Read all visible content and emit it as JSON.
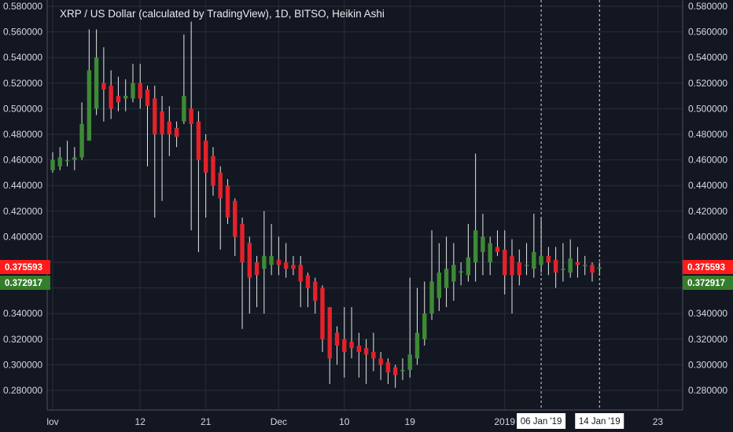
{
  "title": "XRP / US Dollar (calculated by TradingView), 1D, BITSO, Heikin Ashi",
  "colors": {
    "background": "#131722",
    "grid": "#2a2e39",
    "axis_text": "#d6d8de",
    "up": "#3e8a35",
    "down": "#e3222b",
    "wick": "#e6e6e6",
    "price_tag_red": "#ff1b1b",
    "price_tag_green": "#347d2b"
  },
  "chart_data": {
    "type": "candlestick",
    "style": "Heikin Ashi",
    "symbol": "XRP / US Dollar",
    "interval": "1D",
    "exchange": "BITSO",
    "ylim": [
      0.272,
      0.582
    ],
    "y_ticks": [
      0.28,
      0.3,
      0.32,
      0.34,
      0.4,
      0.42,
      0.44,
      0.46,
      0.48,
      0.5,
      0.52,
      0.54,
      0.56,
      0.58
    ],
    "y_tick_labels": [
      "0.280000",
      "0.300000",
      "0.320000",
      "0.340000",
      "0.400000",
      "0.420000",
      "0.440000",
      "0.460000",
      "0.480000",
      "0.500000",
      "0.520000",
      "0.540000",
      "0.560000",
      "0.580000"
    ],
    "x_ticks": [
      {
        "day": 0,
        "label": "lov"
      },
      {
        "day": 12,
        "label": "12"
      },
      {
        "day": 21,
        "label": "21"
      },
      {
        "day": 31,
        "label": "Dec"
      },
      {
        "day": 40,
        "label": "10"
      },
      {
        "day": 49,
        "label": "19"
      },
      {
        "day": 62,
        "label": "2019"
      },
      {
        "day": 83,
        "label": "23"
      }
    ],
    "date_markers": [
      {
        "day": 67,
        "label": "06 Jan '19"
      },
      {
        "day": 75,
        "label": "14 Jan '19"
      }
    ],
    "price_labels": [
      {
        "value": 0.375593,
        "label": "0.375593",
        "color": "red"
      },
      {
        "value": 0.372917,
        "label": "0.372917",
        "color": "green"
      }
    ],
    "candles": [
      {
        "day": 0,
        "open": 0.452,
        "close": 0.46,
        "high": 0.466,
        "low": 0.45
      },
      {
        "day": 1,
        "open": 0.455,
        "close": 0.462,
        "high": 0.47,
        "low": 0.452
      },
      {
        "day": 2,
        "open": 0.459,
        "close": 0.46,
        "high": 0.475,
        "low": 0.455
      },
      {
        "day": 3,
        "open": 0.46,
        "close": 0.462,
        "high": 0.47,
        "low": 0.452
      },
      {
        "day": 4,
        "open": 0.462,
        "close": 0.488,
        "high": 0.505,
        "low": 0.46
      },
      {
        "day": 5,
        "open": 0.475,
        "close": 0.53,
        "high": 0.562,
        "low": 0.475
      },
      {
        "day": 6,
        "open": 0.5,
        "close": 0.54,
        "high": 0.562,
        "low": 0.495
      },
      {
        "day": 7,
        "open": 0.52,
        "close": 0.515,
        "high": 0.548,
        "low": 0.49
      },
      {
        "day": 8,
        "open": 0.518,
        "close": 0.5,
        "high": 0.53,
        "low": 0.492
      },
      {
        "day": 9,
        "open": 0.51,
        "close": 0.505,
        "high": 0.525,
        "low": 0.498
      },
      {
        "day": 10,
        "open": 0.508,
        "close": 0.51,
        "high": 0.523,
        "low": 0.498
      },
      {
        "day": 11,
        "open": 0.508,
        "close": 0.52,
        "high": 0.535,
        "low": 0.505
      },
      {
        "day": 12,
        "open": 0.52,
        "close": 0.508,
        "high": 0.535,
        "low": 0.5
      },
      {
        "day": 13,
        "open": 0.515,
        "close": 0.502,
        "high": 0.518,
        "low": 0.455
      },
      {
        "day": 14,
        "open": 0.508,
        "close": 0.48,
        "high": 0.518,
        "low": 0.415
      },
      {
        "day": 15,
        "open": 0.498,
        "close": 0.48,
        "high": 0.51,
        "low": 0.428
      },
      {
        "day": 16,
        "open": 0.49,
        "close": 0.48,
        "high": 0.502,
        "low": 0.463
      },
      {
        "day": 17,
        "open": 0.485,
        "close": 0.478,
        "high": 0.49,
        "low": 0.47
      },
      {
        "day": 18,
        "open": 0.49,
        "close": 0.51,
        "high": 0.558,
        "low": 0.488
      },
      {
        "day": 19,
        "open": 0.5,
        "close": 0.488,
        "high": 0.568,
        "low": 0.405
      },
      {
        "day": 20,
        "open": 0.49,
        "close": 0.46,
        "high": 0.498,
        "low": 0.388
      },
      {
        "day": 21,
        "open": 0.475,
        "close": 0.45,
        "high": 0.48,
        "low": 0.415
      },
      {
        "day": 22,
        "open": 0.463,
        "close": 0.44,
        "high": 0.47,
        "low": 0.432
      },
      {
        "day": 23,
        "open": 0.45,
        "close": 0.43,
        "high": 0.455,
        "low": 0.39
      },
      {
        "day": 24,
        "open": 0.44,
        "close": 0.415,
        "high": 0.445,
        "low": 0.41
      },
      {
        "day": 25,
        "open": 0.428,
        "close": 0.4,
        "high": 0.43,
        "low": 0.385
      },
      {
        "day": 26,
        "open": 0.41,
        "close": 0.38,
        "high": 0.415,
        "low": 0.328
      },
      {
        "day": 27,
        "open": 0.395,
        "close": 0.368,
        "high": 0.4,
        "low": 0.34
      },
      {
        "day": 28,
        "open": 0.38,
        "close": 0.37,
        "high": 0.385,
        "low": 0.345
      },
      {
        "day": 29,
        "open": 0.375,
        "close": 0.385,
        "high": 0.42,
        "low": 0.34
      },
      {
        "day": 30,
        "open": 0.378,
        "close": 0.385,
        "high": 0.41,
        "low": 0.37
      },
      {
        "day": 31,
        "open": 0.382,
        "close": 0.378,
        "high": 0.4,
        "low": 0.37
      },
      {
        "day": 32,
        "open": 0.38,
        "close": 0.375,
        "high": 0.395,
        "low": 0.368
      },
      {
        "day": 33,
        "open": 0.378,
        "close": 0.375,
        "high": 0.385,
        "low": 0.37
      },
      {
        "day": 34,
        "open": 0.378,
        "close": 0.365,
        "high": 0.385,
        "low": 0.345
      },
      {
        "day": 35,
        "open": 0.37,
        "close": 0.36,
        "high": 0.372,
        "low": 0.345
      },
      {
        "day": 36,
        "open": 0.365,
        "close": 0.35,
        "high": 0.368,
        "low": 0.34
      },
      {
        "day": 37,
        "open": 0.36,
        "close": 0.32,
        "high": 0.362,
        "low": 0.31
      },
      {
        "day": 38,
        "open": 0.345,
        "close": 0.305,
        "high": 0.345,
        "low": 0.285
      },
      {
        "day": 39,
        "open": 0.325,
        "close": 0.315,
        "high": 0.33,
        "low": 0.3
      },
      {
        "day": 40,
        "open": 0.32,
        "close": 0.31,
        "high": 0.345,
        "low": 0.29
      },
      {
        "day": 41,
        "open": 0.318,
        "close": 0.313,
        "high": 0.345,
        "low": 0.305
      },
      {
        "day": 42,
        "open": 0.315,
        "close": 0.31,
        "high": 0.325,
        "low": 0.29
      },
      {
        "day": 43,
        "open": 0.313,
        "close": 0.308,
        "high": 0.32,
        "low": 0.285
      },
      {
        "day": 44,
        "open": 0.31,
        "close": 0.305,
        "high": 0.325,
        "low": 0.295
      },
      {
        "day": 45,
        "open": 0.305,
        "close": 0.3,
        "high": 0.31,
        "low": 0.288
      },
      {
        "day": 46,
        "open": 0.302,
        "close": 0.294,
        "high": 0.305,
        "low": 0.285
      },
      {
        "day": 47,
        "open": 0.298,
        "close": 0.292,
        "high": 0.3,
        "low": 0.282
      },
      {
        "day": 48,
        "open": 0.295,
        "close": 0.296,
        "high": 0.305,
        "low": 0.288
      },
      {
        "day": 49,
        "open": 0.296,
        "close": 0.308,
        "high": 0.368,
        "low": 0.29
      },
      {
        "day": 50,
        "open": 0.305,
        "close": 0.325,
        "high": 0.36,
        "low": 0.3
      },
      {
        "day": 51,
        "open": 0.32,
        "close": 0.34,
        "high": 0.365,
        "low": 0.315
      },
      {
        "day": 52,
        "open": 0.34,
        "close": 0.365,
        "high": 0.405,
        "low": 0.335
      },
      {
        "day": 53,
        "open": 0.352,
        "close": 0.372,
        "high": 0.395,
        "low": 0.342
      },
      {
        "day": 54,
        "open": 0.36,
        "close": 0.375,
        "high": 0.4,
        "low": 0.345
      },
      {
        "day": 55,
        "open": 0.365,
        "close": 0.378,
        "high": 0.395,
        "low": 0.35
      },
      {
        "day": 56,
        "open": 0.372,
        "close": 0.373,
        "high": 0.38,
        "low": 0.362
      },
      {
        "day": 57,
        "open": 0.37,
        "close": 0.384,
        "high": 0.41,
        "low": 0.365
      },
      {
        "day": 58,
        "open": 0.38,
        "close": 0.405,
        "high": 0.465,
        "low": 0.365
      },
      {
        "day": 59,
        "open": 0.388,
        "close": 0.4,
        "high": 0.418,
        "low": 0.37
      },
      {
        "day": 60,
        "open": 0.38,
        "close": 0.395,
        "high": 0.4,
        "low": 0.37
      },
      {
        "day": 61,
        "open": 0.392,
        "close": 0.388,
        "high": 0.405,
        "low": 0.385
      },
      {
        "day": 62,
        "open": 0.39,
        "close": 0.37,
        "high": 0.405,
        "low": 0.355
      },
      {
        "day": 63,
        "open": 0.385,
        "close": 0.37,
        "high": 0.398,
        "low": 0.34
      },
      {
        "day": 64,
        "open": 0.38,
        "close": 0.37,
        "high": 0.39,
        "low": 0.362
      },
      {
        "day": 65,
        "open": 0.378,
        "close": 0.378,
        "high": 0.395,
        "low": 0.37
      },
      {
        "day": 66,
        "open": 0.375,
        "close": 0.388,
        "high": 0.418,
        "low": 0.368
      },
      {
        "day": 67,
        "open": 0.378,
        "close": 0.385,
        "high": 0.415,
        "low": 0.372
      },
      {
        "day": 68,
        "open": 0.385,
        "close": 0.38,
        "high": 0.392,
        "low": 0.37
      },
      {
        "day": 69,
        "open": 0.382,
        "close": 0.372,
        "high": 0.392,
        "low": 0.36
      },
      {
        "day": 70,
        "open": 0.375,
        "close": 0.375,
        "high": 0.395,
        "low": 0.365
      },
      {
        "day": 71,
        "open": 0.372,
        "close": 0.383,
        "high": 0.398,
        "low": 0.368
      },
      {
        "day": 72,
        "open": 0.38,
        "close": 0.378,
        "high": 0.392,
        "low": 0.368
      },
      {
        "day": 73,
        "open": 0.378,
        "close": 0.378,
        "high": 0.385,
        "low": 0.37
      },
      {
        "day": 74,
        "open": 0.378,
        "close": 0.372,
        "high": 0.38,
        "low": 0.365
      },
      {
        "day": 75,
        "open": 0.376,
        "close": 0.376,
        "high": 0.38,
        "low": 0.37
      }
    ]
  }
}
